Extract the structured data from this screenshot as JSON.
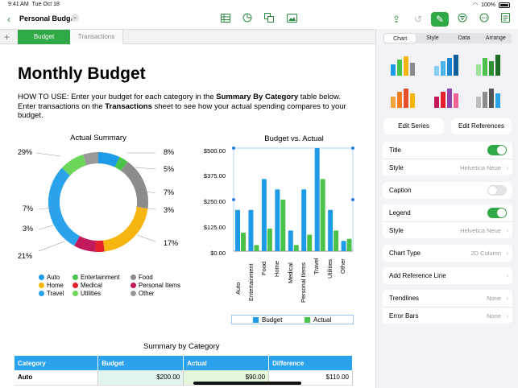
{
  "status": {
    "time": "9:41 AM",
    "date": "Tue Oct 18",
    "battery": "100%"
  },
  "toolbar": {
    "back_icon": "chevron-left-icon",
    "document_title": "Personal Budget",
    "icons": [
      "table-icon",
      "chart-icon",
      "shapes-icon",
      "media-icon",
      "share-icon",
      "undo-icon",
      "format-brush-icon",
      "filter-icon",
      "more-icon",
      "document-icon"
    ],
    "accent": "#2fa846"
  },
  "sheets": {
    "add": "+",
    "tabs": [
      "Budget",
      "Transactions"
    ],
    "active": "Budget"
  },
  "page": {
    "title": "Monthly Budget",
    "howto": {
      "p1": "HOW TO USE: Enter your budget for each category in the ",
      "b1": "Summary By Category",
      "p2": " table below. Enter transactions on the ",
      "b2": "Transactions",
      "p3": " sheet to see how your actual spending compares to your budget."
    }
  },
  "donut": {
    "title": "Actual Summary",
    "labels": [
      "29%",
      "8%",
      "5%",
      "7%",
      "3%",
      "17%",
      "21%",
      "3%",
      "7%"
    ]
  },
  "donut_legend": [
    {
      "label": "Auto",
      "color": "#1e9be7"
    },
    {
      "label": "Entertainment",
      "color": "#4bc34a"
    },
    {
      "label": "Food",
      "color": "#8c8c8c"
    },
    {
      "label": "Home",
      "color": "#f6b60f"
    },
    {
      "label": "Medical",
      "color": "#e5202a"
    },
    {
      "label": "Personal Items",
      "color": "#c2195b"
    },
    {
      "label": "Travel",
      "color": "#2aa3ec"
    },
    {
      "label": "Utilities",
      "color": "#6cd65b"
    },
    {
      "label": "Other",
      "color": "#9a9a9a"
    }
  ],
  "chart_data": [
    {
      "type": "pie",
      "title": "Actual Summary",
      "categories": [
        "Auto",
        "Entertainment",
        "Food",
        "Home",
        "Medical",
        "Personal Items",
        "Travel",
        "Utilities",
        "Other"
      ],
      "values": [
        7,
        3,
        17,
        21,
        3,
        7,
        29,
        8,
        5
      ],
      "colors": [
        "#1e9be7",
        "#4bc34a",
        "#8c8c8c",
        "#f6b60f",
        "#e5202a",
        "#c2195b",
        "#2aa3ec",
        "#6cd65b",
        "#9a9a9a"
      ]
    },
    {
      "type": "bar",
      "title": "Budget vs. Actual",
      "categories": [
        "Auto",
        "Entertainment",
        "Food",
        "Home",
        "Medical",
        "Personal Items",
        "Travel",
        "Utilities",
        "Other"
      ],
      "series": [
        {
          "name": "Budget",
          "color": "#1e9be7",
          "values": [
            200,
            200,
            350,
            300,
            100,
            300,
            500,
            200,
            50
          ]
        },
        {
          "name": "Actual",
          "color": "#4bc34a",
          "values": [
            90,
            30,
            110,
            250,
            30,
            80,
            350,
            100,
            60
          ]
        }
      ],
      "yticks": [
        "$500.00",
        "$375.00",
        "$250.00",
        "$125.00",
        "$0.00"
      ],
      "ylim": [
        0,
        500
      ],
      "legend": "bottom"
    }
  ],
  "summary": {
    "title": "Summary by Category",
    "headers": [
      "Category",
      "Budget",
      "Actual",
      "Difference"
    ],
    "rows": [
      [
        "Auto",
        "$200.00",
        "$90.00",
        "$110.00"
      ]
    ]
  },
  "inspector": {
    "tabs": [
      "Chart",
      "Style",
      "Data",
      "Arrange"
    ],
    "active_tab": "Chart",
    "edit_series": "Edit Series",
    "edit_references": "Edit References",
    "title_label": "Title",
    "title_on": true,
    "style_label": "Style",
    "title_style_value": "Helvetica Neue",
    "caption_label": "Caption",
    "caption_on": false,
    "legend_label": "Legend",
    "legend_on": true,
    "legend_style_value": "Helvetica Neue",
    "chart_type_label": "Chart Type",
    "chart_type_value": "2D Column",
    "add_reference_line": "Add Reference Line",
    "trendlines_label": "Trendlines",
    "trendlines_value": "None",
    "error_bars_label": "Error Bars",
    "error_bars_value": "None"
  }
}
